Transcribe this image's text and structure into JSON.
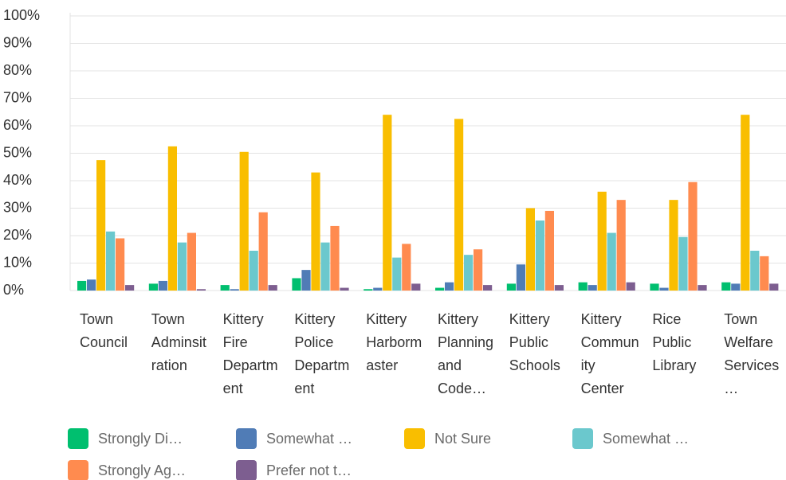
{
  "chart_data": {
    "type": "bar",
    "categories": [
      "Town Council",
      "Town Adminsitration",
      "Kittery Fire Department",
      "Kittery Police Department",
      "Kittery Harbormaster",
      "Kittery Planning and Code…",
      "Kittery Public Schools",
      "Kittery Community Center",
      "Rice Public Library",
      "Town Welfare Services…"
    ],
    "series": [
      {
        "name": "Strongly Di…",
        "color": "#00bf6f",
        "values": [
          3.5,
          2.5,
          2,
          4.5,
          0.5,
          1,
          2.5,
          3,
          2.5,
          3
        ]
      },
      {
        "name": "Somewhat …",
        "color": "#507cb6",
        "values": [
          4,
          3.5,
          0.5,
          7.5,
          1,
          3,
          9.5,
          2,
          1,
          2.5
        ]
      },
      {
        "name": "Not Sure",
        "color": "#f9be00",
        "values": [
          47.5,
          52.5,
          50.5,
          43,
          64,
          62.5,
          30,
          36,
          33,
          64
        ]
      },
      {
        "name": "Somewhat …",
        "color": "#6bc8cd",
        "values": [
          21.5,
          17.5,
          14.5,
          17.5,
          12,
          13,
          25.5,
          21,
          19.5,
          14.5
        ]
      },
      {
        "name": "Strongly Ag…",
        "color": "#ff8b4f",
        "values": [
          19,
          21,
          28.5,
          23.5,
          17,
          15,
          29,
          33,
          39.5,
          12.5
        ]
      },
      {
        "name": "Prefer not t…",
        "color": "#7d5e90",
        "values": [
          2,
          0.5,
          2,
          1,
          2.5,
          2,
          2,
          3,
          2,
          2.5
        ]
      }
    ],
    "ylim": [
      0,
      100
    ],
    "yticks": [
      {
        "value": 0,
        "label": "0%"
      },
      {
        "value": 10,
        "label": "10%"
      },
      {
        "value": 20,
        "label": "20%"
      },
      {
        "value": 30,
        "label": "30%"
      },
      {
        "value": 40,
        "label": "40%"
      },
      {
        "value": 50,
        "label": "50%"
      },
      {
        "value": 60,
        "label": "60%"
      },
      {
        "value": 70,
        "label": "70%"
      },
      {
        "value": 80,
        "label": "80%"
      },
      {
        "value": 90,
        "label": "90%"
      },
      {
        "value": 100,
        "label": "100%"
      }
    ],
    "grid": true
  }
}
